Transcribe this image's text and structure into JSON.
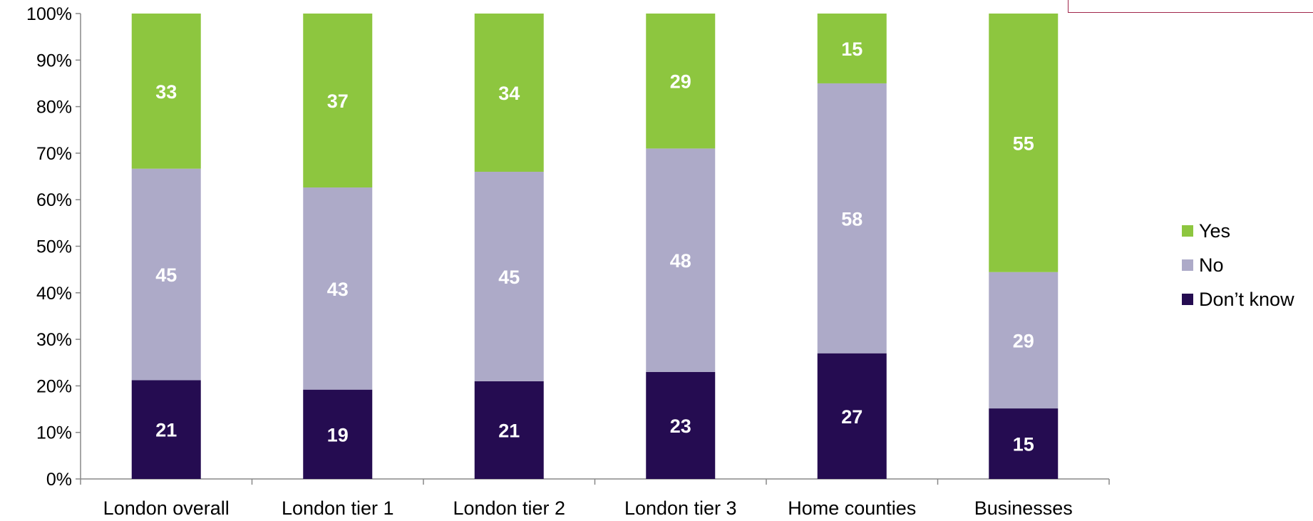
{
  "chart_data": {
    "type": "bar",
    "stacked": true,
    "percent_stacked": true,
    "categories": [
      "London overall",
      "London tier 1",
      "London tier 2",
      "London tier 3",
      "Home counties",
      "Businesses"
    ],
    "series": [
      {
        "name": "Don’t know",
        "values": [
          21,
          19,
          21,
          23,
          27,
          15
        ],
        "color": "#250c51"
      },
      {
        "name": "No",
        "values": [
          45,
          43,
          45,
          48,
          58,
          29
        ],
        "color": "#adaac8"
      },
      {
        "name": "Yes",
        "values": [
          33,
          37,
          34,
          29,
          15,
          55
        ],
        "color": "#8dc63f"
      }
    ],
    "yticks": [
      "0%",
      "10%",
      "20%",
      "30%",
      "40%",
      "50%",
      "60%",
      "70%",
      "80%",
      "90%",
      "100%"
    ],
    "ylim": [
      0,
      100
    ],
    "grid": false,
    "legend_position": "right",
    "legend_order": [
      "Yes",
      "No",
      "Don’t know"
    ]
  },
  "colors": {
    "corner_box_border": "#a0264b"
  }
}
